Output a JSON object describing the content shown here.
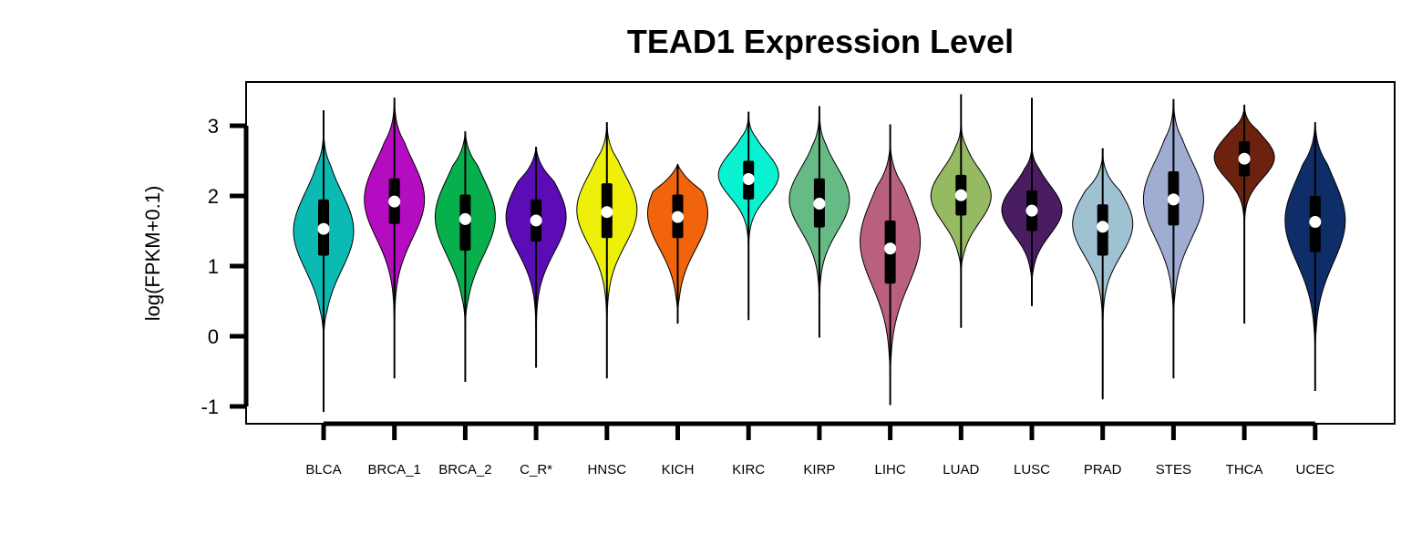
{
  "chart_data": {
    "type": "violin",
    "title": "TEAD1 Expression Level",
    "ylabel": "log(FPKM+0.1)",
    "xlabel": "",
    "ylim": [
      -1.25,
      3.7
    ],
    "yticks": [
      -1,
      0,
      1,
      2,
      3
    ],
    "grid": false,
    "legend": "none",
    "series": [
      {
        "category": "BLCA",
        "color": "#0CBAB4",
        "min": -1.08,
        "max": 3.22,
        "q1": 1.15,
        "median": 1.53,
        "q3": 1.95,
        "violin_top": 2.95,
        "violin_bottom": -0.15,
        "mode": 1.5,
        "spread": 0.55
      },
      {
        "category": "BRCA_1",
        "color": "#B40CC0",
        "min": -0.6,
        "max": 3.4,
        "q1": 1.6,
        "median": 1.92,
        "q3": 2.25,
        "violin_top": 3.4,
        "violin_bottom": -0.35,
        "mode": 1.95,
        "spread": 0.55
      },
      {
        "category": "BRCA_2",
        "color": "#08B04D",
        "min": -0.65,
        "max": 2.92,
        "q1": 1.22,
        "median": 1.67,
        "q3": 2.02,
        "violin_top": 2.92,
        "violin_bottom": 0.05,
        "mode": 1.7,
        "spread": 0.55
      },
      {
        "category": "C_R*",
        "color": "#5C0CB5",
        "min": -0.45,
        "max": 2.7,
        "q1": 1.35,
        "median": 1.65,
        "q3": 1.95,
        "violin_top": 2.7,
        "violin_bottom": -0.2,
        "mode": 1.7,
        "spread": 0.5
      },
      {
        "category": "HNSC",
        "color": "#EFF00A",
        "min": -0.6,
        "max": 3.05,
        "q1": 1.4,
        "median": 1.77,
        "q3": 2.18,
        "violin_top": 3.05,
        "violin_bottom": -0.1,
        "mode": 1.8,
        "spread": 0.5
      },
      {
        "category": "KICH",
        "color": "#F1640C",
        "min": 0.18,
        "max": 2.45,
        "q1": 1.4,
        "median": 1.7,
        "q3": 2.02,
        "violin_top": 2.45,
        "violin_bottom": 0.18,
        "mode": 1.75,
        "spread": 0.5
      },
      {
        "category": "KIRC",
        "color": "#08F2D2",
        "min": 0.23,
        "max": 3.2,
        "q1": 1.95,
        "median": 2.24,
        "q3": 2.5,
        "violin_top": 3.2,
        "violin_bottom": 1.0,
        "mode": 2.3,
        "spread": 0.32
      },
      {
        "category": "KIRP",
        "color": "#66BA85",
        "min": -0.02,
        "max": 3.28,
        "q1": 1.55,
        "median": 1.89,
        "q3": 2.25,
        "violin_top": 3.28,
        "violin_bottom": 0.0,
        "mode": 1.95,
        "spread": 0.45
      },
      {
        "category": "LIHC",
        "color": "#B9607E",
        "min": -0.98,
        "max": 3.02,
        "q1": 0.75,
        "median": 1.25,
        "q3": 1.65,
        "violin_top": 2.75,
        "violin_bottom": -0.9,
        "mode": 1.35,
        "spread": 0.62
      },
      {
        "category": "LUAD",
        "color": "#95BA61",
        "min": 0.12,
        "max": 3.45,
        "q1": 1.72,
        "median": 2.01,
        "q3": 2.3,
        "violin_top": 3.1,
        "violin_bottom": 0.8,
        "mode": 2.0,
        "spread": 0.38
      },
      {
        "category": "LUSC",
        "color": "#4A1C62",
        "min": 0.43,
        "max": 3.4,
        "q1": 1.5,
        "median": 1.79,
        "q3": 2.08,
        "violin_top": 2.75,
        "violin_bottom": 0.6,
        "mode": 1.8,
        "spread": 0.35
      },
      {
        "category": "PRAD",
        "color": "#9FC1D2",
        "min": -0.9,
        "max": 2.68,
        "q1": 1.15,
        "median": 1.56,
        "q3": 1.88,
        "violin_top": 2.6,
        "violin_bottom": -0.5,
        "mode": 1.6,
        "spread": 0.45
      },
      {
        "category": "STES",
        "color": "#9FADD3",
        "min": -0.6,
        "max": 3.38,
        "q1": 1.58,
        "median": 1.95,
        "q3": 2.35,
        "violin_top": 3.38,
        "violin_bottom": 0.0,
        "mode": 1.95,
        "spread": 0.55
      },
      {
        "category": "THCA",
        "color": "#6B220F",
        "min": 0.18,
        "max": 3.3,
        "q1": 2.28,
        "median": 2.53,
        "q3": 2.78,
        "violin_top": 3.3,
        "violin_bottom": 1.2,
        "mode": 2.55,
        "spread": 0.3
      },
      {
        "category": "UCEC",
        "color": "#0F2D69",
        "min": -0.78,
        "max": 3.05,
        "q1": 1.2,
        "median": 1.63,
        "q3": 2.0,
        "violin_top": 3.05,
        "violin_bottom": -0.5,
        "mode": 1.65,
        "spread": 0.6
      }
    ]
  }
}
